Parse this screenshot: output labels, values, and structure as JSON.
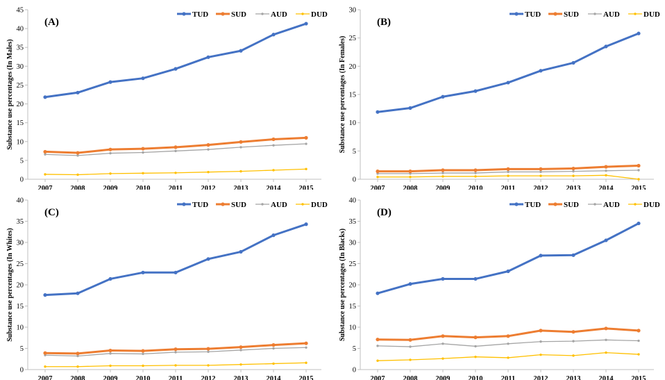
{
  "colors": {
    "TUD": "#4472C4",
    "SUD": "#ED7D31",
    "AUD": "#A5A5A5",
    "DUD": "#FFC000"
  },
  "legend_labels": [
    "TUD",
    "SUD",
    "AUD",
    "DUD"
  ],
  "chart_data": [
    {
      "type": "line",
      "panel_label": "(A)",
      "ylabel": "Substance use percentages (In Males)",
      "categories": [
        "2007",
        "2008",
        "2009",
        "2010",
        "2011",
        "2012",
        "2013",
        "2014",
        "2015"
      ],
      "ylim": [
        0,
        45
      ],
      "yticks": [
        "0",
        "5",
        "10",
        "15",
        "20",
        "25",
        "30",
        "35",
        "40",
        "45"
      ],
      "series": [
        {
          "name": "TUD",
          "values": [
            21.8,
            23.0,
            25.8,
            26.8,
            29.3,
            32.4,
            34.1,
            38.4,
            41.3
          ]
        },
        {
          "name": "SUD",
          "values": [
            7.3,
            7.0,
            7.9,
            8.1,
            8.5,
            9.1,
            9.9,
            10.6,
            11.0
          ]
        },
        {
          "name": "AUD",
          "values": [
            6.6,
            6.3,
            6.9,
            7.1,
            7.5,
            7.9,
            8.5,
            9.0,
            9.4
          ]
        },
        {
          "name": "DUD",
          "values": [
            1.3,
            1.2,
            1.5,
            1.6,
            1.7,
            1.9,
            2.1,
            2.4,
            2.7
          ]
        }
      ]
    },
    {
      "type": "line",
      "panel_label": "(B)",
      "ylabel": "Substance use percentages (In Females)",
      "categories": [
        "2007",
        "2008",
        "2009",
        "2010",
        "2011",
        "2012",
        "2013",
        "2014",
        "2015"
      ],
      "ylim": [
        0,
        30
      ],
      "yticks": [
        "0",
        "5",
        "10",
        "15",
        "20",
        "25",
        "30"
      ],
      "series": [
        {
          "name": "TUD",
          "values": [
            11.9,
            12.6,
            14.6,
            15.6,
            17.1,
            19.2,
            20.6,
            23.5,
            25.8
          ]
        },
        {
          "name": "SUD",
          "values": [
            1.4,
            1.4,
            1.6,
            1.6,
            1.8,
            1.8,
            1.9,
            2.2,
            2.4
          ]
        },
        {
          "name": "AUD",
          "values": [
            1.0,
            1.0,
            1.1,
            1.1,
            1.3,
            1.3,
            1.4,
            1.5,
            1.6
          ]
        },
        {
          "name": "DUD",
          "values": [
            0.4,
            0.4,
            0.5,
            0.5,
            0.6,
            0.6,
            0.6,
            0.7,
            0.0
          ]
        }
      ]
    },
    {
      "type": "line",
      "panel_label": "(C)",
      "ylabel": "Substance use percentages (In Whites)",
      "categories": [
        "2007",
        "2008",
        "2009",
        "2010",
        "2011",
        "2012",
        "2013",
        "2014",
        "2015"
      ],
      "ylim": [
        0,
        40
      ],
      "yticks": [
        "0",
        "5",
        "10",
        "15",
        "20",
        "25",
        "30",
        "35",
        "40"
      ],
      "series": [
        {
          "name": "TUD",
          "values": [
            17.6,
            18.0,
            21.4,
            22.9,
            22.9,
            26.1,
            27.8,
            31.7,
            34.3
          ]
        },
        {
          "name": "SUD",
          "values": [
            3.9,
            3.8,
            4.5,
            4.4,
            4.8,
            4.9,
            5.3,
            5.8,
            6.2
          ]
        },
        {
          "name": "AUD",
          "values": [
            3.4,
            3.2,
            3.8,
            3.7,
            4.1,
            4.2,
            4.6,
            5.0,
            5.2
          ]
        },
        {
          "name": "DUD",
          "values": [
            0.7,
            0.7,
            0.9,
            0.9,
            1.0,
            1.0,
            1.2,
            1.4,
            1.6
          ]
        }
      ]
    },
    {
      "type": "line",
      "panel_label": "(D)",
      "ylabel": "Substance use percentages (In Blacks)",
      "categories": [
        "2007",
        "2008",
        "2009",
        "2010",
        "2011",
        "2012",
        "2013",
        "2014",
        "2015"
      ],
      "ylim": [
        0,
        40
      ],
      "yticks": [
        "0",
        "5",
        "10",
        "15",
        "20",
        "25",
        "30",
        "35",
        "40"
      ],
      "series": [
        {
          "name": "TUD",
          "values": [
            18.0,
            20.2,
            21.4,
            21.4,
            23.2,
            26.9,
            27.0,
            30.5,
            34.5
          ]
        },
        {
          "name": "SUD",
          "values": [
            7.1,
            7.0,
            7.9,
            7.6,
            7.9,
            9.2,
            8.9,
            9.7,
            9.2
          ]
        },
        {
          "name": "AUD",
          "values": [
            5.6,
            5.4,
            6.1,
            5.5,
            6.1,
            6.6,
            6.7,
            7.0,
            6.8
          ]
        },
        {
          "name": "DUD",
          "values": [
            2.1,
            2.3,
            2.6,
            3.0,
            2.8,
            3.5,
            3.3,
            4.0,
            3.6
          ]
        }
      ]
    }
  ]
}
